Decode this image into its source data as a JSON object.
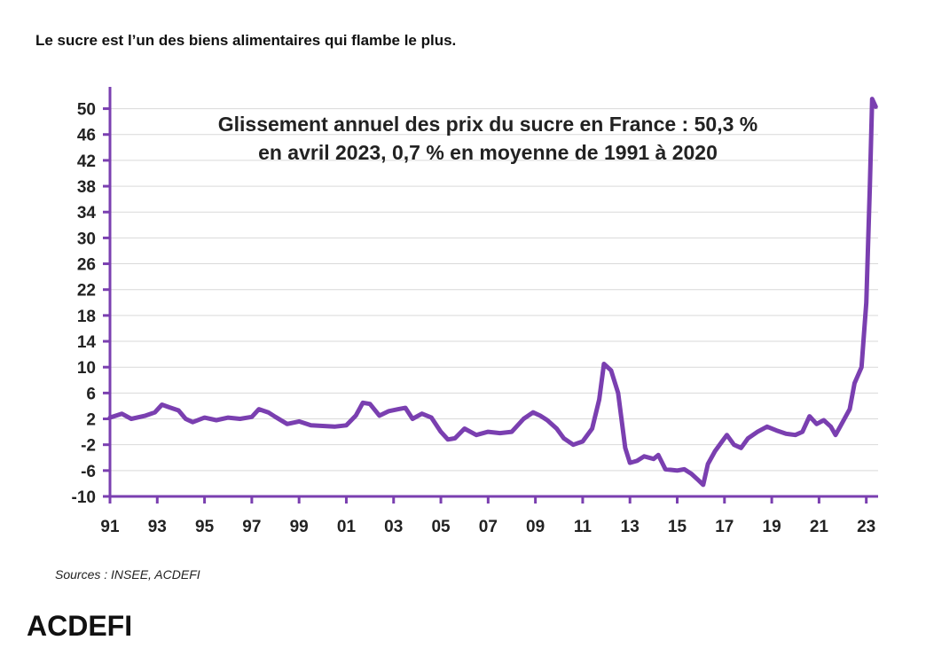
{
  "headline": "Le sucre est l’un des biens alimentaires qui flambe le plus.",
  "sources": "Sources : INSEE, ACDEFI",
  "brand": "ACDEFI",
  "colors": {
    "line": "#7a3fb0",
    "axis": "#7a3fb0",
    "grid": "#d9d9d9"
  },
  "chart_data": {
    "type": "line",
    "title_lines": [
      "Glissement annuel des prix du sucre en France : 50,3 %",
      "en avril 2023, 0,7 % en moyenne de 1991 à 2020"
    ],
    "xlabel": "",
    "ylabel": "",
    "ylim": [
      -10,
      52
    ],
    "xlim": [
      1991,
      2023.5
    ],
    "y_ticks": [
      50,
      46,
      42,
      38,
      34,
      30,
      26,
      22,
      18,
      14,
      10,
      6,
      2,
      -2,
      -6,
      -10
    ],
    "x_ticks": [
      {
        "value": 1991,
        "label": "91"
      },
      {
        "value": 1993,
        "label": "93"
      },
      {
        "value": 1995,
        "label": "95"
      },
      {
        "value": 1997,
        "label": "97"
      },
      {
        "value": 1999,
        "label": "99"
      },
      {
        "value": 2001,
        "label": "01"
      },
      {
        "value": 2003,
        "label": "03"
      },
      {
        "value": 2005,
        "label": "05"
      },
      {
        "value": 2007,
        "label": "07"
      },
      {
        "value": 2009,
        "label": "09"
      },
      {
        "value": 2011,
        "label": "11"
      },
      {
        "value": 2013,
        "label": "13"
      },
      {
        "value": 2015,
        "label": "15"
      },
      {
        "value": 2017,
        "label": "17"
      },
      {
        "value": 2019,
        "label": "19"
      },
      {
        "value": 2021,
        "label": "21"
      },
      {
        "value": 2023,
        "label": "23"
      }
    ],
    "grid": true,
    "series": [
      {
        "points": [
          [
            1991.0,
            2.2
          ],
          [
            1991.5,
            2.8
          ],
          [
            1991.9,
            2.0
          ],
          [
            1992.5,
            2.5
          ],
          [
            1992.9,
            3.0
          ],
          [
            1993.2,
            4.2
          ],
          [
            1993.5,
            3.8
          ],
          [
            1993.9,
            3.3
          ],
          [
            1994.2,
            2.0
          ],
          [
            1994.5,
            1.5
          ],
          [
            1995.0,
            2.2
          ],
          [
            1995.5,
            1.8
          ],
          [
            1996.0,
            2.2
          ],
          [
            1996.5,
            2.0
          ],
          [
            1997.0,
            2.3
          ],
          [
            1997.3,
            3.5
          ],
          [
            1997.7,
            3.0
          ],
          [
            1998.0,
            2.3
          ],
          [
            1998.5,
            1.2
          ],
          [
            1999.0,
            1.6
          ],
          [
            1999.5,
            1.0
          ],
          [
            2000.0,
            0.9
          ],
          [
            2000.5,
            0.8
          ],
          [
            2001.0,
            1.0
          ],
          [
            2001.4,
            2.5
          ],
          [
            2001.7,
            4.5
          ],
          [
            2002.0,
            4.3
          ],
          [
            2002.4,
            2.5
          ],
          [
            2002.8,
            3.2
          ],
          [
            2003.2,
            3.5
          ],
          [
            2003.5,
            3.7
          ],
          [
            2003.8,
            2.0
          ],
          [
            2004.2,
            2.8
          ],
          [
            2004.6,
            2.2
          ],
          [
            2005.0,
            0.0
          ],
          [
            2005.3,
            -1.2
          ],
          [
            2005.6,
            -1.0
          ],
          [
            2006.0,
            0.5
          ],
          [
            2006.5,
            -0.5
          ],
          [
            2007.0,
            0.0
          ],
          [
            2007.5,
            -0.2
          ],
          [
            2008.0,
            0.0
          ],
          [
            2008.5,
            2.0
          ],
          [
            2008.9,
            3.0
          ],
          [
            2009.2,
            2.5
          ],
          [
            2009.5,
            1.8
          ],
          [
            2009.9,
            0.5
          ],
          [
            2010.2,
            -1.0
          ],
          [
            2010.6,
            -2.0
          ],
          [
            2011.0,
            -1.5
          ],
          [
            2011.4,
            0.5
          ],
          [
            2011.7,
            5.0
          ],
          [
            2011.9,
            10.5
          ],
          [
            2012.2,
            9.5
          ],
          [
            2012.5,
            6.0
          ],
          [
            2012.8,
            -2.5
          ],
          [
            2013.0,
            -4.8
          ],
          [
            2013.3,
            -4.5
          ],
          [
            2013.6,
            -3.8
          ],
          [
            2014.0,
            -4.2
          ],
          [
            2014.2,
            -3.6
          ],
          [
            2014.5,
            -5.8
          ],
          [
            2015.0,
            -6.0
          ],
          [
            2015.3,
            -5.8
          ],
          [
            2015.6,
            -6.5
          ],
          [
            2015.9,
            -7.5
          ],
          [
            2016.1,
            -8.2
          ],
          [
            2016.3,
            -5.0
          ],
          [
            2016.6,
            -3.0
          ],
          [
            2016.9,
            -1.5
          ],
          [
            2017.1,
            -0.5
          ],
          [
            2017.4,
            -2.0
          ],
          [
            2017.7,
            -2.5
          ],
          [
            2018.0,
            -1.0
          ],
          [
            2018.4,
            0.0
          ],
          [
            2018.8,
            0.8
          ],
          [
            2019.2,
            0.2
          ],
          [
            2019.6,
            -0.3
          ],
          [
            2020.0,
            -0.5
          ],
          [
            2020.3,
            0.0
          ],
          [
            2020.6,
            2.4
          ],
          [
            2020.9,
            1.2
          ],
          [
            2021.2,
            1.8
          ],
          [
            2021.5,
            0.8
          ],
          [
            2021.7,
            -0.5
          ],
          [
            2022.0,
            1.5
          ],
          [
            2022.3,
            3.5
          ],
          [
            2022.5,
            7.5
          ],
          [
            2022.8,
            10.0
          ],
          [
            2023.0,
            20.0
          ],
          [
            2023.15,
            38.0
          ],
          [
            2023.25,
            51.5
          ],
          [
            2023.4,
            50.3
          ]
        ]
      }
    ]
  }
}
